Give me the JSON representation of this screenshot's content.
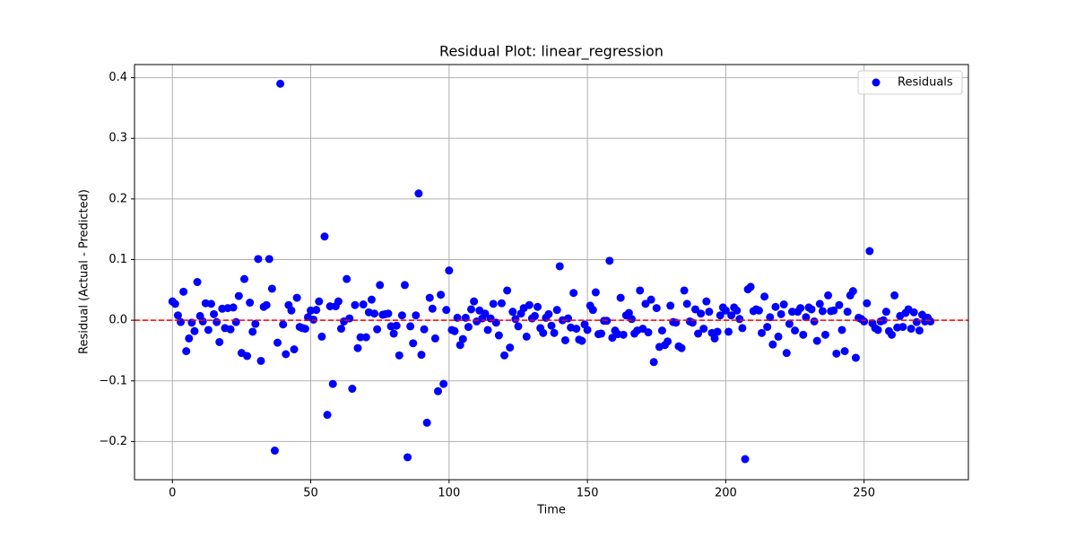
{
  "chart_data": {
    "type": "scatter",
    "title": "Residual Plot: linear_regression",
    "x_label": "Time",
    "y_label": "Residual (Actual - Predicted)",
    "xlim": [
      -13.7,
      287.7
    ],
    "ylim": [
      -0.263,
      0.4216
    ],
    "xticks": [
      0,
      50,
      100,
      150,
      200,
      250
    ],
    "yticks": [
      {
        "value": -0.2,
        "label": "−0.2"
      },
      {
        "value": -0.1,
        "label": "−0.1"
      },
      {
        "value": 0,
        "label": "0.0"
      },
      0.1,
      0.2,
      0.3,
      0.4
    ],
    "grid": true,
    "legend": "upper right",
    "reference_line": {
      "y": 0,
      "color": "#ff0000"
    },
    "x": [
      0,
      1,
      2,
      3,
      4,
      5,
      6,
      7,
      8,
      9,
      10,
      11,
      12,
      13,
      14,
      15,
      16,
      17,
      18,
      19,
      20,
      21,
      22,
      23,
      24,
      25,
      26,
      27,
      28,
      29,
      30,
      31,
      32,
      33,
      34,
      35,
      36,
      37,
      38,
      39,
      40,
      41,
      42,
      43,
      44,
      45,
      46,
      47,
      48,
      49,
      50,
      51,
      52,
      53,
      54,
      55,
      56,
      57,
      58,
      59,
      60,
      61,
      62,
      63,
      64,
      65,
      66,
      67,
      68,
      69,
      70,
      71,
      72,
      73,
      74,
      75,
      76,
      77,
      78,
      79,
      80,
      81,
      82,
      83,
      84,
      85,
      86,
      87,
      88,
      89,
      90,
      91,
      92,
      93,
      94,
      95,
      96,
      97,
      98,
      99,
      100,
      101,
      102,
      103,
      104,
      105,
      106,
      107,
      108,
      109,
      110,
      111,
      112,
      113,
      114,
      115,
      116,
      117,
      118,
      119,
      120,
      121,
      122,
      123,
      124,
      125,
      126,
      127,
      128,
      129,
      130,
      131,
      132,
      133,
      134,
      135,
      136,
      137,
      138,
      139,
      140,
      141,
      142,
      143,
      144,
      145,
      146,
      147,
      148,
      149,
      150,
      151,
      152,
      153,
      154,
      155,
      156,
      157,
      158,
      159,
      160,
      161,
      162,
      163,
      164,
      165,
      166,
      167,
      168,
      169,
      170,
      171,
      172,
      173,
      174,
      175,
      176,
      177,
      178,
      179,
      180,
      181,
      182,
      183,
      184,
      185,
      186,
      187,
      188,
      189,
      190,
      191,
      192,
      193,
      194,
      195,
      196,
      197,
      198,
      199,
      200,
      201,
      202,
      203,
      204,
      205,
      206,
      207,
      208,
      209,
      210,
      211,
      212,
      213,
      214,
      215,
      216,
      217,
      218,
      219,
      220,
      221,
      222,
      223,
      224,
      225,
      226,
      227,
      228,
      229,
      230,
      231,
      232,
      233,
      234,
      235,
      236,
      237,
      238,
      239,
      240,
      241,
      242,
      243,
      244,
      245,
      246,
      247,
      248,
      249,
      250,
      251,
      252,
      253,
      254,
      255,
      256,
      257,
      258,
      259,
      260,
      261,
      262,
      263,
      264,
      265,
      266,
      267,
      268,
      269,
      270,
      271,
      272,
      273,
      274
    ],
    "series": [
      {
        "name": "Residuals",
        "color": "#0000ff",
        "values": [
          0.031,
          0.027,
          0.008,
          -0.003,
          0.047,
          -0.051,
          -0.03,
          -0.004,
          -0.018,
          0.063,
          0.007,
          -0.002,
          0.028,
          -0.016,
          0.027,
          0.01,
          -0.003,
          -0.036,
          0.019,
          -0.013,
          0.02,
          -0.015,
          0.021,
          -0.003,
          0.04,
          -0.054,
          0.068,
          -0.059,
          0.029,
          -0.019,
          -0.006,
          0.101,
          -0.067,
          0.022,
          0.025,
          0.101,
          0.052,
          -0.215,
          -0.037,
          0.39,
          -0.007,
          -0.056,
          0.025,
          0.016,
          -0.048,
          0.037,
          -0.011,
          -0.013,
          -0.014,
          0.005,
          0.016,
          0.001,
          0.017,
          0.031,
          -0.027,
          0.138,
          -0.156,
          0.023,
          -0.105,
          0.023,
          0.031,
          -0.014,
          -0.002,
          0.068,
          0.003,
          -0.113,
          0.025,
          -0.046,
          -0.028,
          0.026,
          -0.028,
          0.013,
          0.034,
          0.011,
          -0.015,
          0.058,
          0.009,
          0.01,
          0.011,
          -0.01,
          -0.022,
          -0.009,
          -0.058,
          0.008,
          0.058,
          -0.226,
          -0.01,
          -0.038,
          0.008,
          0.209,
          -0.057,
          -0.015,
          -0.169,
          0.037,
          0.019,
          -0.03,
          -0.117,
          0.042,
          -0.105,
          0.017,
          0.082,
          -0.016,
          -0.018,
          0.004,
          -0.041,
          -0.031,
          0.004,
          -0.011,
          0.018,
          0.031,
          -0.002,
          0.016,
          0.003,
          0.011,
          -0.016,
          0.003,
          0.027,
          -0.004,
          -0.025,
          0.028,
          -0.058,
          0.049,
          -0.045,
          0.014,
          0.002,
          -0.01,
          0.011,
          0.02,
          -0.027,
          0.025,
          0.003,
          0.007,
          0.022,
          -0.013,
          -0.021,
          0.004,
          0.01,
          -0.009,
          -0.021,
          0.017,
          0.089,
          0.0,
          -0.033,
          0.003,
          -0.012,
          0.045,
          -0.014,
          -0.032,
          -0.034,
          -0.007,
          -0.016,
          0.024,
          0.017,
          0.046,
          -0.023,
          -0.022,
          -0.001,
          -0.001,
          0.098,
          -0.029,
          -0.017,
          -0.023,
          0.037,
          -0.024,
          0.008,
          0.012,
          0.002,
          -0.022,
          -0.017,
          0.049,
          -0.014,
          0.027,
          -0.02,
          0.034,
          -0.069,
          0.02,
          -0.044,
          -0.017,
          -0.041,
          -0.035,
          0.024,
          -0.003,
          -0.004,
          -0.043,
          -0.046,
          0.049,
          0.027,
          -0.002,
          -0.004,
          0.018,
          -0.022,
          0.011,
          -0.014,
          0.031,
          0.014,
          -0.021,
          -0.03,
          -0.019,
          0.008,
          0.021,
          0.016,
          -0.019,
          0.008,
          0.021,
          0.016,
          0.002,
          -0.013,
          -0.229,
          0.051,
          0.055,
          0.015,
          0.018,
          0.016,
          -0.021,
          0.039,
          -0.011,
          0.005,
          -0.04,
          0.022,
          -0.027,
          0.01,
          0.026,
          -0.054,
          -0.006,
          0.014,
          -0.017,
          0.014,
          0.02,
          -0.024,
          0.005,
          0.021,
          0.018,
          -0.002,
          -0.034,
          0.027,
          0.015,
          -0.024,
          0.041,
          0.015,
          0.016,
          -0.055,
          0.025,
          -0.016,
          -0.051,
          0.014,
          0.041,
          0.048,
          -0.062,
          0.004,
          0.002,
          -0.002,
          0.028,
          0.114,
          -0.005,
          -0.013,
          -0.016,
          -0.002,
          0.0,
          0.014,
          -0.018,
          -0.024,
          0.041,
          -0.012,
          0.007,
          -0.011,
          0.012,
          0.018,
          -0.014,
          0.013,
          -0.003,
          -0.017,
          0.009,
          -0.002,
          0.004,
          -0.002
        ]
      }
    ]
  }
}
